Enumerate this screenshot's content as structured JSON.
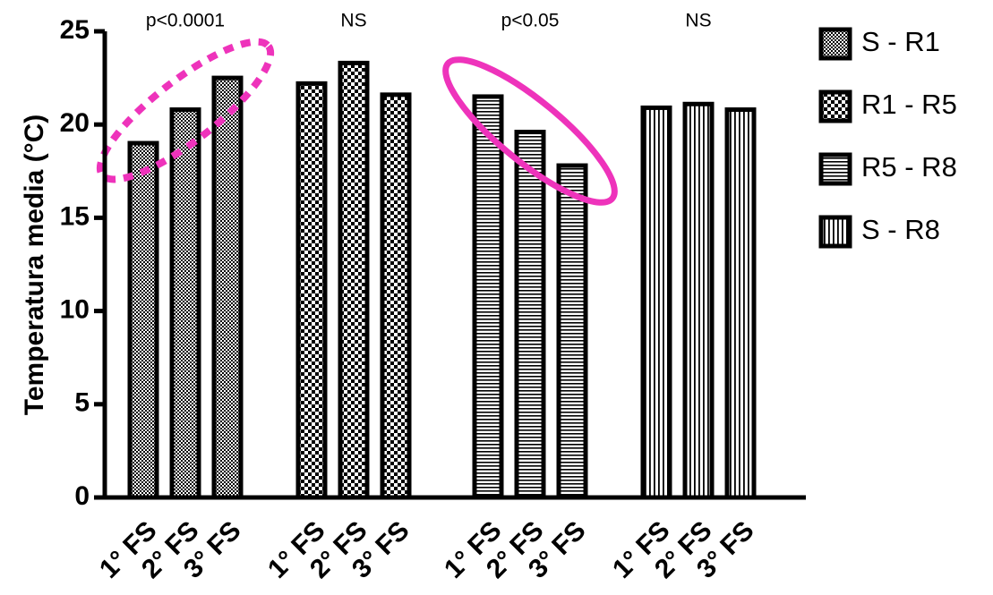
{
  "chart_data": {
    "type": "bar",
    "title": "",
    "xlabel": "",
    "ylabel": "Temperatura media (°C)",
    "ylim": [
      0,
      25
    ],
    "yticks": [
      0,
      5,
      10,
      15,
      20,
      25
    ],
    "grid": false,
    "legend_position": "right",
    "groups": [
      {
        "name": "S - R1",
        "pattern": "fine-checker",
        "annotation": "p<0.0001",
        "highlight": "dotted-ellipse",
        "categories": [
          "1° FS",
          "2° FS",
          "3° FS"
        ],
        "values": [
          19.0,
          20.8,
          22.5
        ]
      },
      {
        "name": "R1 - R5",
        "pattern": "coarse-checker",
        "annotation": "NS",
        "highlight": "",
        "categories": [
          "1° FS",
          "2° FS",
          "3° FS"
        ],
        "values": [
          22.2,
          23.3,
          21.6
        ]
      },
      {
        "name": "R5 - R8",
        "pattern": "horizontal-lines",
        "annotation": "p<0.05",
        "highlight": "solid-ellipse",
        "categories": [
          "1° FS",
          "2° FS",
          "3° FS"
        ],
        "values": [
          21.5,
          19.6,
          17.8
        ]
      },
      {
        "name": "S - R8",
        "pattern": "vertical-lines",
        "annotation": "NS",
        "highlight": "",
        "categories": [
          "1° FS",
          "2° FS",
          "3° FS"
        ],
        "values": [
          20.9,
          21.1,
          20.8
        ]
      }
    ]
  },
  "colors": {
    "highlight": "#ee33bb",
    "ink": "#000000",
    "background": "#ffffff"
  }
}
